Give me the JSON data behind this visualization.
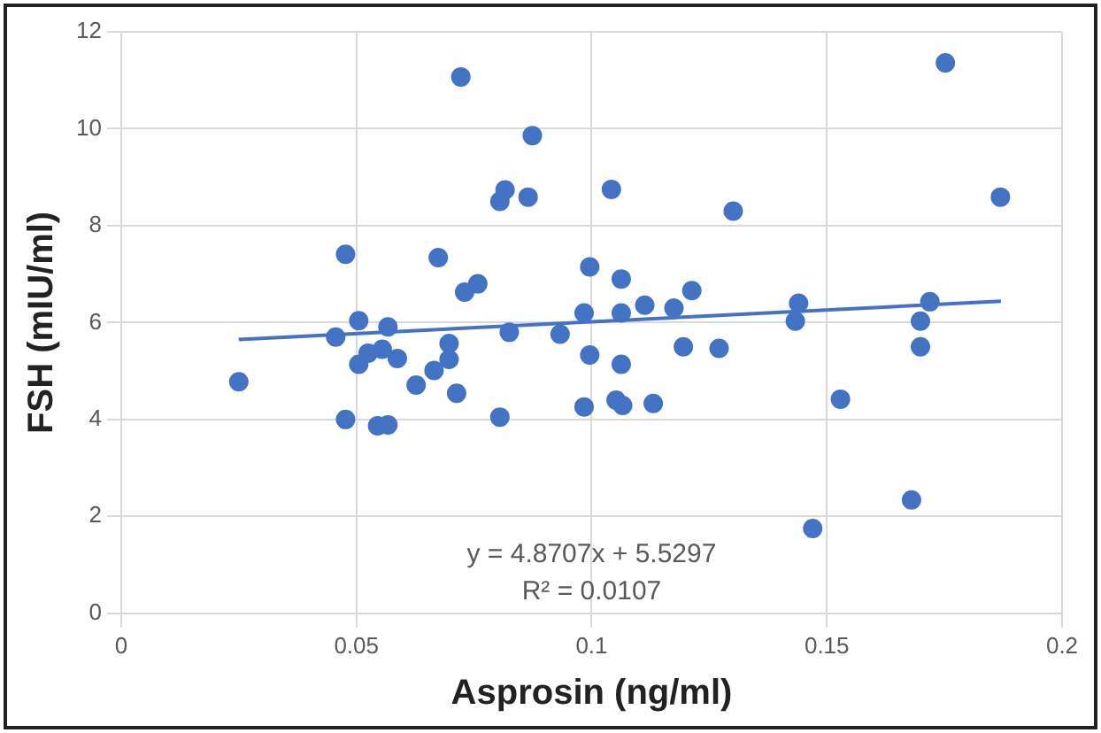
{
  "chart_data": {
    "type": "scatter",
    "xlabel": "Asprosin (ng/ml)",
    "ylabel": "FSH (mIU/ml)",
    "xlim": [
      0,
      0.2
    ],
    "xticks": [
      0,
      0.05,
      0.1,
      0.15,
      0.2
    ],
    "ylim": [
      0,
      12
    ],
    "yticks": [
      0,
      2,
      4,
      6,
      8,
      10,
      12
    ],
    "grid": true,
    "legend": false,
    "marker": "circle",
    "series": [
      {
        "color": "#4472c4",
        "x": [
          0.025,
          0.0477,
          0.0456,
          0.0505,
          0.0567,
          0.0505,
          0.0525,
          0.0555,
          0.0587,
          0.0477,
          0.0545,
          0.0567,
          0.0627,
          0.0665,
          0.0697,
          0.0697,
          0.0713,
          0.0674,
          0.073,
          0.0758,
          0.0722,
          0.0805,
          0.0816,
          0.0865,
          0.0874,
          0.0825,
          0.0805,
          0.0933,
          0.0984,
          0.0996,
          0.0996,
          0.0984,
          0.1042,
          0.1063,
          0.1063,
          0.1063,
          0.1052,
          0.1066,
          0.1113,
          0.1131,
          0.1175,
          0.1213,
          0.1195,
          0.1271,
          0.1301,
          0.144,
          0.1433,
          0.1529,
          0.147,
          0.168,
          0.1699,
          0.1699,
          0.1719,
          0.1752,
          0.1869
        ],
        "values": [
          4.78,
          7.41,
          5.7,
          6.04,
          5.91,
          5.14,
          5.37,
          5.45,
          5.26,
          4.0,
          3.87,
          3.89,
          4.71,
          5.01,
          5.57,
          5.24,
          4.54,
          7.34,
          6.63,
          6.8,
          11.07,
          8.5,
          8.74,
          8.59,
          9.86,
          5.8,
          4.05,
          5.76,
          6.2,
          7.15,
          5.33,
          4.26,
          8.75,
          6.9,
          6.2,
          5.14,
          4.4,
          4.29,
          6.36,
          4.33,
          6.3,
          6.66,
          5.5,
          5.47,
          8.3,
          6.4,
          6.03,
          4.42,
          1.75,
          2.34,
          6.03,
          5.5,
          6.43,
          11.36,
          8.59
        ]
      },
      {
        "type": "line",
        "color": "#4472c4",
        "x": [
          0.025,
          0.187
        ],
        "values": [
          5.65,
          6.44
        ],
        "marker": "none"
      }
    ],
    "annotations": [
      "y = 4.8707x + 5.5297",
      "R² = 0.0107"
    ]
  }
}
